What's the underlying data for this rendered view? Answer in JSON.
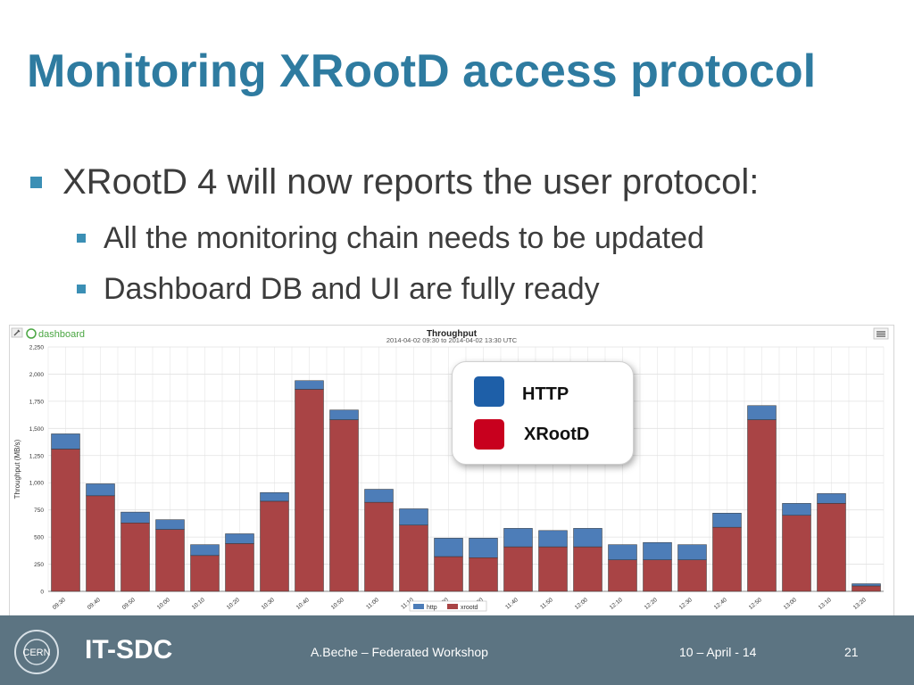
{
  "slide": {
    "title": "Monitoring XRootD access protocol",
    "bullets": [
      {
        "text": "XRootD 4 will now reports the user protocol:"
      },
      {
        "text": "All the monitoring chain needs to be updated"
      },
      {
        "text": "Dashboard DB and UI are fully ready"
      }
    ]
  },
  "dashboard": {
    "logo_text": "dashboard",
    "menu_icon": "hamburger-menu-icon",
    "settings_icon": "wrench-icon"
  },
  "chart_data": {
    "type": "bar",
    "stacked": true,
    "title": "Throughput",
    "subtitle": "2014-04-02 09:30 to 2014-04-02 13:30 UTC",
    "ylabel": "Throughput (MB/s)",
    "ylim": [
      0,
      2250
    ],
    "yticks": [
      "0",
      "250",
      "500",
      "750",
      "1,000",
      "1,250",
      "1,500",
      "1,750",
      "2,000",
      "2,250"
    ],
    "grid": true,
    "categories": [
      "09:30",
      "09:40",
      "09:50",
      "10:00",
      "10:10",
      "10:20",
      "10:30",
      "10:40",
      "10:50",
      "11:00",
      "11:10",
      "11:20",
      "11:30",
      "11:40",
      "11:50",
      "12:00",
      "12:10",
      "12:20",
      "12:30",
      "12:40",
      "12:50",
      "13:00",
      "13:10",
      "13:20"
    ],
    "series": [
      {
        "name": "xrootd",
        "color": "#a94445",
        "values": [
          1310,
          880,
          630,
          570,
          330,
          440,
          830,
          1860,
          1580,
          820,
          610,
          320,
          310,
          410,
          410,
          410,
          290,
          290,
          290,
          590,
          1580,
          700,
          810,
          50
        ]
      },
      {
        "name": "http",
        "color": "#4d7db8",
        "values": [
          140,
          110,
          100,
          90,
          100,
          90,
          80,
          80,
          90,
          120,
          150,
          170,
          180,
          170,
          150,
          170,
          140,
          160,
          140,
          130,
          130,
          110,
          90,
          20
        ]
      }
    ],
    "legend": [
      {
        "name": "http",
        "color": "#4d7db8"
      },
      {
        "name": "xrootd",
        "color": "#a94445"
      }
    ],
    "legend_position": "bottom"
  },
  "overlay_legend": {
    "items": [
      {
        "label": "HTTP",
        "color": "#1e5fa8"
      },
      {
        "label": "XRootD",
        "color": "#c8001e"
      }
    ]
  },
  "footer": {
    "logo": "CERN",
    "group": "IT-SDC",
    "author": "A.Beche – Federated Workshop",
    "date": "10 – April - 14",
    "page": "21"
  }
}
